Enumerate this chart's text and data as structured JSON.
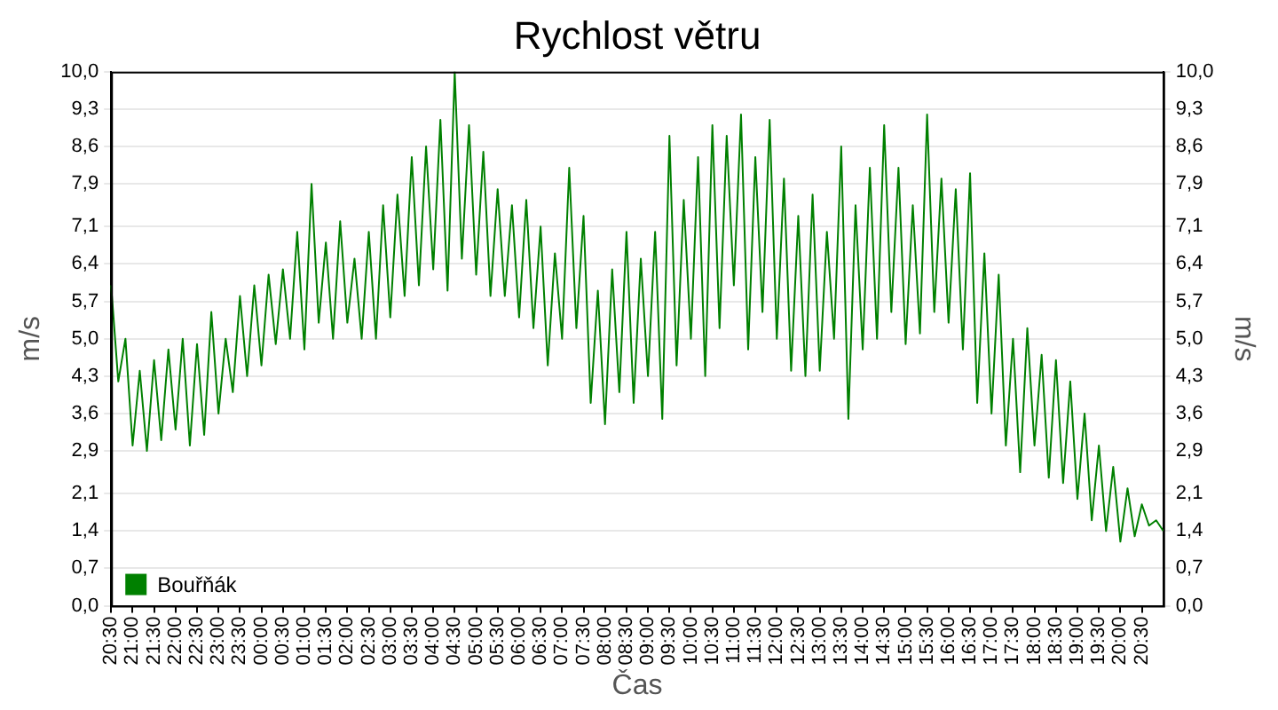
{
  "chart_data": {
    "type": "line",
    "title": "Rychlost větru",
    "xlabel": "Čas",
    "ylabel": "m/s",
    "y2label": "m/s",
    "categories": [
      "20:30",
      null,
      null,
      "21:00",
      null,
      null,
      "21:30",
      null,
      null,
      "22:00",
      null,
      null,
      "22:30",
      null,
      null,
      "23:00",
      null,
      null,
      "23:30",
      null,
      null,
      "00:00",
      null,
      null,
      "00:30",
      null,
      null,
      "01:00",
      null,
      null,
      "01:30",
      null,
      null,
      "02:00",
      null,
      null,
      "02:30",
      null,
      null,
      "03:00",
      null,
      null,
      "03:30",
      null,
      null,
      "04:00",
      null,
      null,
      "04:30",
      null,
      null,
      "05:00",
      null,
      null,
      "05:30",
      null,
      null,
      "06:00",
      null,
      null,
      "06:30",
      null,
      null,
      "07:00",
      null,
      null,
      "07:30",
      null,
      null,
      "08:00",
      null,
      null,
      "08:30",
      null,
      null,
      "09:00",
      null,
      null,
      "09:30",
      null,
      null,
      "10:00",
      null,
      null,
      "10:30",
      null,
      null,
      "11:00",
      null,
      null,
      "11:30",
      null,
      null,
      "12:00",
      null,
      null,
      "12:30",
      null,
      null,
      "13:00",
      null,
      null,
      "13:30",
      null,
      null,
      "14:00",
      null,
      null,
      "14:30",
      null,
      null,
      "15:00",
      null,
      null,
      "15:30",
      null,
      null,
      "16:00",
      null,
      null,
      "16:30",
      null,
      null,
      "17:00",
      null,
      null,
      "17:30",
      null,
      null,
      "18:00",
      null,
      null,
      "18:30",
      null,
      null,
      "19:00",
      null,
      null,
      "19:30",
      null,
      null,
      "20:00",
      null,
      null,
      "20:30",
      null,
      null,
      null
    ],
    "series": [
      {
        "name": "Bouřňák",
        "color": "#008000",
        "values": [
          6.0,
          4.2,
          5.0,
          3.0,
          4.4,
          2.9,
          4.6,
          3.1,
          4.8,
          3.3,
          5.0,
          3.0,
          4.9,
          3.2,
          5.5,
          3.6,
          5.0,
          4.0,
          5.8,
          4.3,
          6.0,
          4.5,
          6.2,
          4.9,
          6.3,
          5.0,
          7.0,
          4.8,
          7.9,
          5.3,
          6.8,
          5.0,
          7.2,
          5.3,
          6.5,
          5.0,
          7.0,
          5.0,
          7.5,
          5.4,
          7.7,
          5.8,
          8.4,
          6.0,
          8.6,
          6.3,
          9.1,
          5.9,
          10.0,
          6.5,
          9.0,
          6.2,
          8.5,
          5.8,
          7.8,
          5.8,
          7.5,
          5.4,
          7.6,
          5.2,
          7.1,
          4.5,
          6.6,
          5.0,
          8.2,
          5.2,
          7.3,
          3.8,
          5.9,
          3.4,
          6.3,
          4.0,
          7.0,
          3.8,
          6.5,
          4.3,
          7.0,
          3.5,
          8.8,
          4.5,
          7.6,
          5.0,
          8.4,
          4.3,
          9.0,
          5.2,
          8.8,
          6.0,
          9.2,
          4.8,
          8.4,
          5.5,
          9.1,
          5.0,
          8.0,
          4.4,
          7.3,
          4.3,
          7.7,
          4.4,
          7.0,
          5.0,
          8.6,
          3.5,
          7.5,
          4.8,
          8.2,
          5.0,
          9.0,
          5.5,
          8.2,
          4.9,
          7.5,
          5.1,
          9.2,
          5.5,
          8.0,
          5.3,
          7.8,
          4.8,
          8.1,
          3.8,
          6.6,
          3.6,
          6.2,
          3.0,
          5.0,
          2.5,
          5.2,
          3.0,
          4.7,
          2.4,
          4.6,
          2.3,
          4.2,
          2.0,
          3.6,
          1.6,
          3.0,
          1.4,
          2.6,
          1.2,
          2.2,
          1.3,
          1.9,
          1.5,
          1.6,
          1.4
        ]
      }
    ],
    "ylim": [
      0,
      10
    ],
    "yticks": [
      {
        "value": 0,
        "label": "0,0"
      },
      {
        "value": 0.7,
        "label": "0,7"
      },
      {
        "value": 1.4,
        "label": "1,4"
      },
      {
        "value": 2.1,
        "label": "2,1"
      },
      {
        "value": 2.9,
        "label": "2,9"
      },
      {
        "value": 3.6,
        "label": "3,6"
      },
      {
        "value": 4.3,
        "label": "4,3"
      },
      {
        "value": 5.0,
        "label": "5,0"
      },
      {
        "value": 5.7,
        "label": "5,7"
      },
      {
        "value": 6.4,
        "label": "6,4"
      },
      {
        "value": 7.1,
        "label": "7,1"
      },
      {
        "value": 7.9,
        "label": "7,9"
      },
      {
        "value": 8.6,
        "label": "8,6"
      },
      {
        "value": 9.3,
        "label": "9,3"
      },
      {
        "value": 10,
        "label": "10,0"
      }
    ],
    "y2lim": [
      0,
      10
    ],
    "y2ticks": [
      {
        "value": 0,
        "label": "0,0"
      },
      {
        "value": 0.7,
        "label": "0,7"
      },
      {
        "value": 1.4,
        "label": "1,4"
      },
      {
        "value": 2.1,
        "label": "2,1"
      },
      {
        "value": 2.9,
        "label": "2,9"
      },
      {
        "value": 3.6,
        "label": "3,6"
      },
      {
        "value": 4.3,
        "label": "4,3"
      },
      {
        "value": 5.0,
        "label": "5,0"
      },
      {
        "value": 5.7,
        "label": "5,7"
      },
      {
        "value": 6.4,
        "label": "6,4"
      },
      {
        "value": 7.1,
        "label": "7,1"
      },
      {
        "value": 7.9,
        "label": "7,9"
      },
      {
        "value": 8.6,
        "label": "8,6"
      },
      {
        "value": 9.3,
        "label": "9,3"
      },
      {
        "value": 10,
        "label": "10,0"
      }
    ],
    "grid": "y",
    "legend": "bottom left",
    "marker": "none",
    "line_style": "solid"
  }
}
